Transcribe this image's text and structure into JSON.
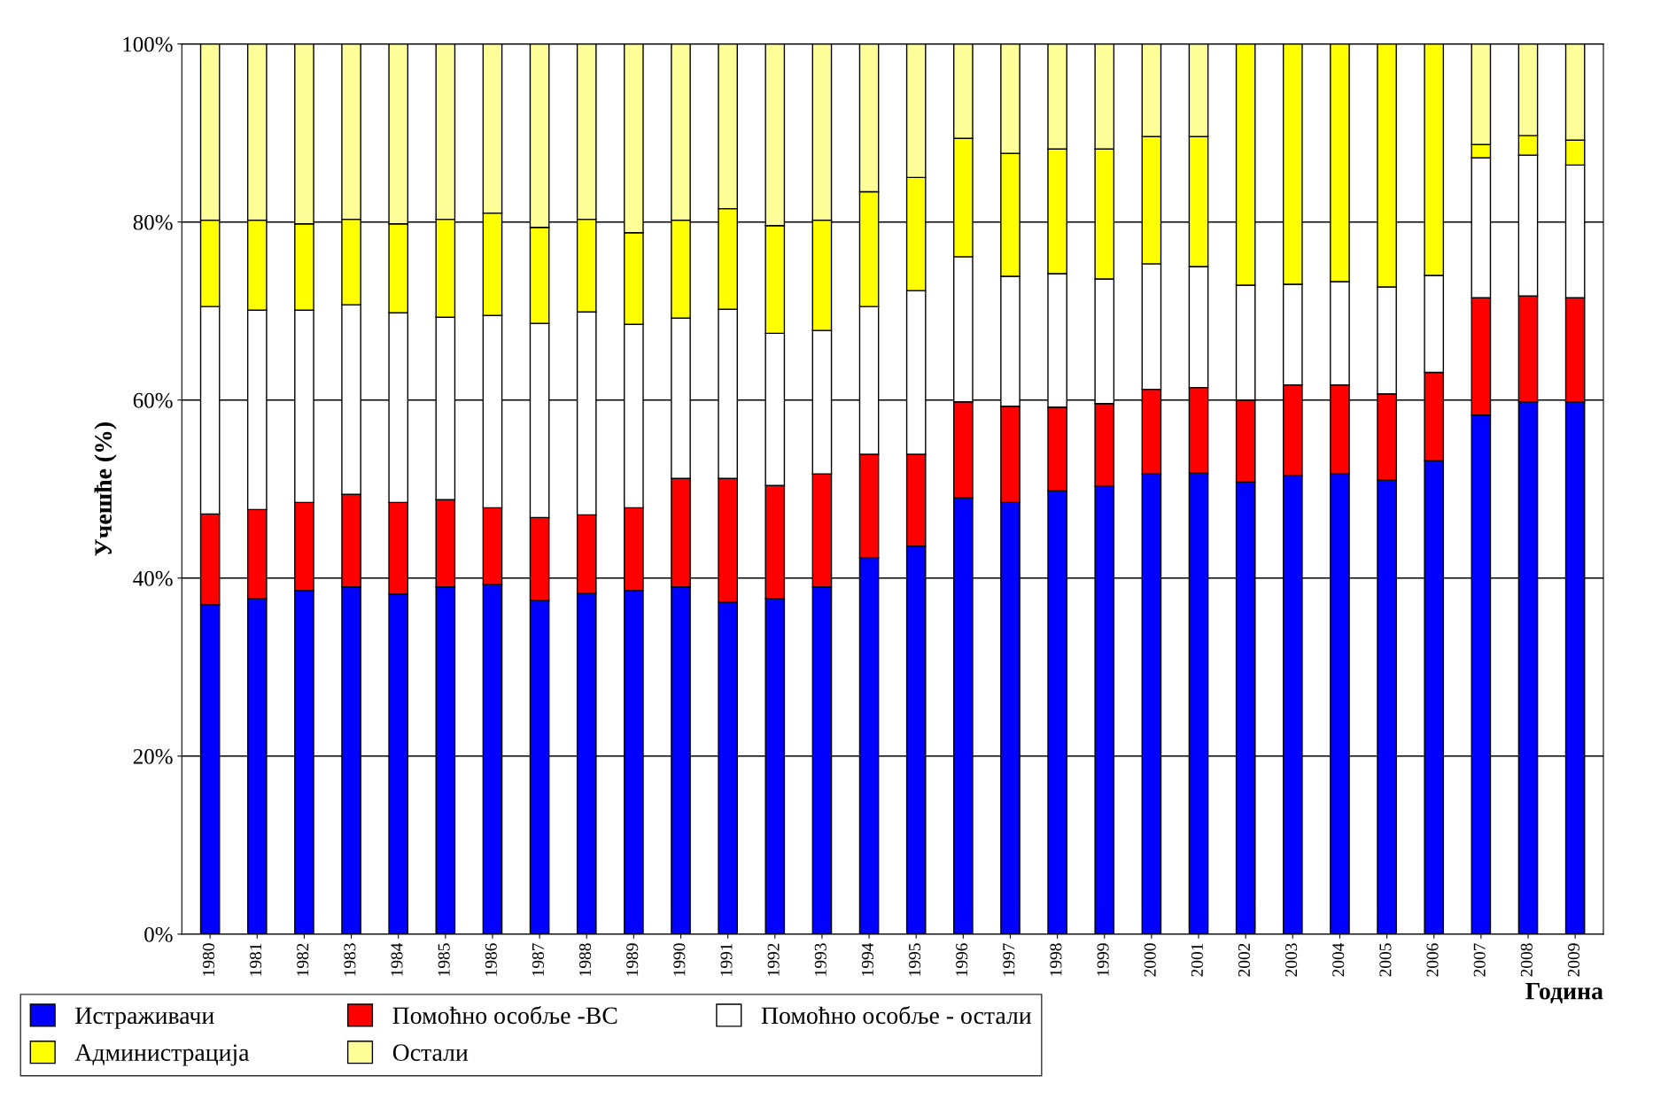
{
  "chart_data": {
    "type": "bar",
    "stacked": true,
    "xlabel": "Година",
    "ylabel": "Учешће (%)",
    "categories": [
      "1980",
      "1981",
      "1982",
      "1983",
      "1984",
      "1985",
      "1986",
      "1987",
      "1988",
      "1989",
      "1990",
      "1991",
      "1992",
      "1993",
      "1994",
      "1995",
      "1996",
      "1997",
      "1998",
      "1999",
      "2000",
      "2001",
      "2002",
      "2003",
      "2004",
      "2005",
      "2006",
      "2007",
      "2008",
      "2009"
    ],
    "ylim": [
      0,
      100
    ],
    "yticks": [
      {
        "value": 0,
        "label": "0%"
      },
      {
        "value": 20,
        "label": "20%"
      },
      {
        "value": 40,
        "label": "40%"
      },
      {
        "value": 60,
        "label": "60%"
      },
      {
        "value": 80,
        "label": "80%"
      },
      {
        "value": 100,
        "label": "100%"
      }
    ],
    "grid": "y",
    "legend": "bottom",
    "series": [
      {
        "name": "Истраживачи",
        "color": "#0000ff",
        "values": [
          37.0,
          37.7,
          38.6,
          39.0,
          38.2,
          39.0,
          39.3,
          37.5,
          38.3,
          38.6,
          39.0,
          37.3,
          37.7,
          39.0,
          42.3,
          43.6,
          49.0,
          48.5,
          49.8,
          50.3,
          51.7,
          51.8,
          50.8,
          51.5,
          51.7,
          51.0,
          53.2,
          58.3,
          59.8,
          59.8
        ]
      },
      {
        "name": "Помоћно особље -ВС",
        "color": "#ff0000",
        "values": [
          10.2,
          10.0,
          9.9,
          10.4,
          10.3,
          9.8,
          8.6,
          9.3,
          8.8,
          9.3,
          12.2,
          13.9,
          12.7,
          12.7,
          11.6,
          10.3,
          10.8,
          10.8,
          9.4,
          9.3,
          9.5,
          9.6,
          9.2,
          10.2,
          10.0,
          9.7,
          9.9,
          13.2,
          11.9,
          11.7
        ]
      },
      {
        "name": "Помоћно особље - остали",
        "color": "#ffffff",
        "values": [
          23.3,
          22.4,
          21.6,
          21.3,
          21.3,
          20.5,
          21.6,
          21.8,
          22.8,
          20.6,
          18.0,
          19.0,
          17.1,
          16.1,
          16.6,
          18.4,
          16.3,
          14.6,
          15.0,
          14.0,
          14.1,
          13.6,
          12.9,
          11.3,
          11.6,
          12.0,
          10.9,
          15.7,
          15.8,
          14.9
        ]
      },
      {
        "name": "Администрација",
        "color": "#ffff00",
        "values": [
          9.7,
          10.1,
          9.7,
          9.6,
          10.0,
          11.0,
          11.5,
          10.8,
          10.4,
          10.3,
          11.0,
          11.3,
          12.1,
          12.4,
          12.9,
          12.7,
          13.3,
          13.8,
          14.0,
          14.6,
          14.3,
          14.6,
          27.1,
          27.0,
          26.7,
          27.3,
          26.0,
          1.5,
          2.2,
          2.8
        ]
      },
      {
        "name": "Остали",
        "color": "#ffff99",
        "values": [
          19.8,
          19.8,
          20.2,
          19.7,
          20.2,
          19.7,
          19.0,
          20.6,
          19.7,
          21.2,
          19.8,
          18.5,
          20.4,
          19.8,
          16.6,
          15.0,
          10.6,
          12.3,
          11.8,
          11.8,
          10.4,
          10.4,
          null,
          null,
          null,
          null,
          null,
          11.3,
          10.3,
          10.8
        ]
      }
    ]
  }
}
